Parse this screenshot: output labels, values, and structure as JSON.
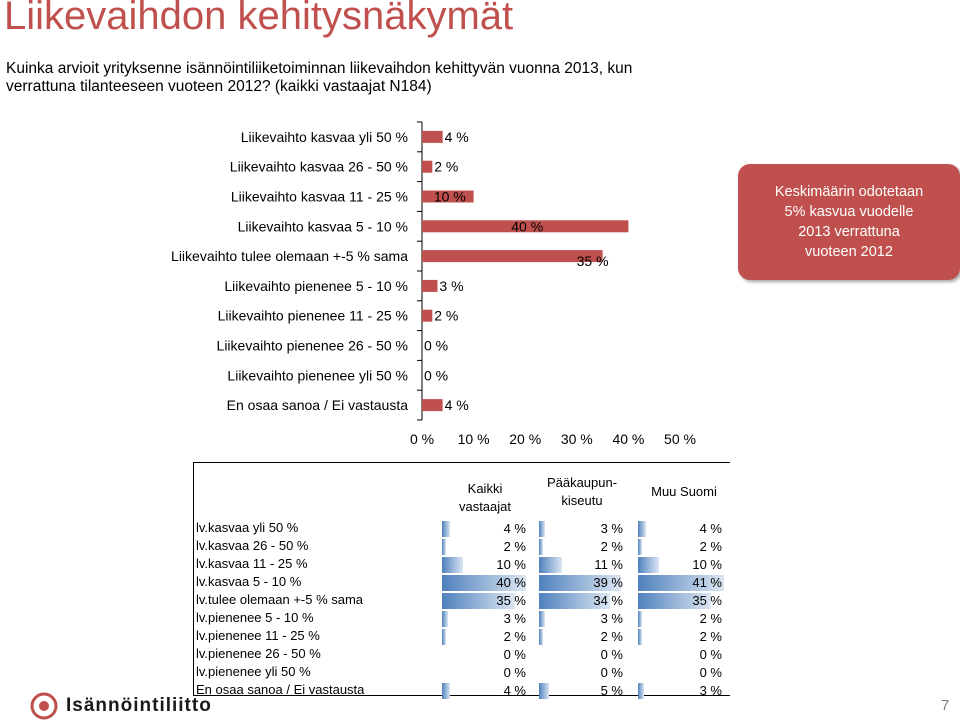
{
  "title": "Liikevaihdon kehitysnäkymät",
  "question": "Kuinka arvioit yrityksenne isännöintiliiketoiminnan liikevaihdon kehittyvän vuonna 2013, kun verrattuna tilanteeseen vuoteen 2012? (kaikki vastaajat N184)",
  "callout": "Keskimäärin odotetaan\n5% kasvua vuodelle\n2013 verrattuna\nvuoteen 2012",
  "chart_data": {
    "type": "bar",
    "orientation": "horizontal",
    "categories": [
      "Liikevaihto kasvaa yli 50 %",
      "Liikevaihto kasvaa 26 - 50 %",
      "Liikevaihto kasvaa 11 - 25 %",
      "Liikevaihto kasvaa 5 - 10 %",
      "Liikevaihto tulee olemaan +-5 % sama",
      "Liikevaihto pienenee 5 - 10 %",
      "Liikevaihto pienenee 11 - 25 %",
      "Liikevaihto pienenee 26 - 50 %",
      "Liikevaihto pienenee yli 50 %",
      "En osaa sanoa / Ei vastausta"
    ],
    "values": [
      4,
      2,
      10,
      40,
      35,
      3,
      2,
      0,
      0,
      4
    ],
    "data_labels": [
      "4 %",
      "2 %",
      "10 %",
      "40 %",
      "35 %",
      "3 %",
      "2 %",
      "0 %",
      "0 %",
      "4 %"
    ],
    "x_ticks": [
      "0 %",
      "10 %",
      "20 %",
      "30 %",
      "40 %",
      "50 %"
    ],
    "xlim": [
      0,
      50
    ],
    "grid": false,
    "bar_color": "#c0504d"
  },
  "table": {
    "headers": [
      "Kaikki\nvastaajat",
      "Pääkaupun-\nkiseutu",
      "Muu Suomi"
    ],
    "rows": [
      {
        "label": "lv.kasvaa yli 50 %",
        "cells": [
          "4 %",
          "3 %",
          "4 %"
        ],
        "vals": [
          4,
          3,
          4
        ]
      },
      {
        "label": "lv.kasvaa 26 - 50 %",
        "cells": [
          "2 %",
          "2 %",
          "2 %"
        ],
        "vals": [
          2,
          2,
          2
        ]
      },
      {
        "label": "lv.kasvaa 11 - 25 %",
        "cells": [
          "10 %",
          "11 %",
          "10 %"
        ],
        "vals": [
          10,
          11,
          10
        ]
      },
      {
        "label": "lv.kasvaa 5 - 10 %",
        "cells": [
          "40 %",
          "39 %",
          "41 %"
        ],
        "vals": [
          40,
          39,
          41
        ]
      },
      {
        "label": "lv.tulee olemaan +-5 % sama",
        "cells": [
          "35 %",
          "34 %",
          "35 %"
        ],
        "vals": [
          35,
          34,
          35
        ]
      },
      {
        "label": "lv.pienenee 5 - 10 %",
        "cells": [
          "3 %",
          "3 %",
          "2 %"
        ],
        "vals": [
          3,
          3,
          2
        ]
      },
      {
        "label": "lv.pienenee 11 - 25 %",
        "cells": [
          "2 %",
          "2 %",
          "2 %"
        ],
        "vals": [
          2,
          2,
          2
        ]
      },
      {
        "label": "lv.pienenee 26 - 50 %",
        "cells": [
          "0 %",
          "0 %",
          "0 %"
        ],
        "vals": [
          0,
          0,
          0
        ]
      },
      {
        "label": "lv.pienenee yli 50 %",
        "cells": [
          "0 %",
          "0 %",
          "0 %"
        ],
        "vals": [
          0,
          0,
          0
        ]
      },
      {
        "label": "En osaa sanoa / Ei vastausta",
        "cells": [
          "4 %",
          "5 %",
          "3 %"
        ],
        "vals": [
          4,
          5,
          3
        ]
      }
    ],
    "bar_color": "#4f81bd"
  },
  "logo_text": "Isännöintiliitto",
  "page_number": "7"
}
